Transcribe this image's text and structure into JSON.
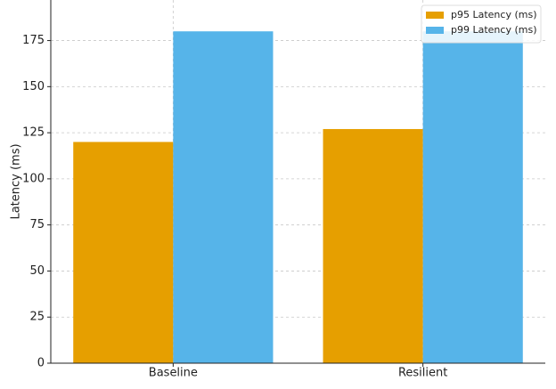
{
  "chart_data": {
    "type": "bar",
    "y_label": "Latency (ms)",
    "categories": [
      "Baseline",
      "Resilient"
    ],
    "series": [
      {
        "name": "p95 Latency (ms)",
        "color": "#E69F00",
        "values": [
          120,
          127
        ]
      },
      {
        "name": "p99 Latency (ms)",
        "color": "#56B4E9",
        "values": [
          180,
          180
        ]
      }
    ],
    "ylim": [
      0,
      197
    ],
    "yticks": [
      0,
      25,
      50,
      75,
      100,
      125,
      150,
      175
    ],
    "grid": true,
    "legend": "upper-right"
  }
}
